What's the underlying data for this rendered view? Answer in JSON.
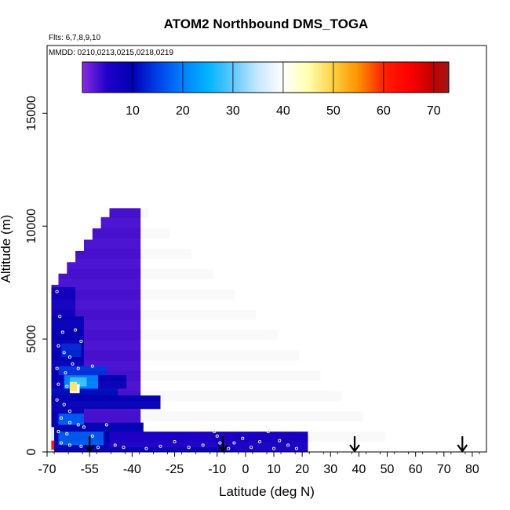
{
  "chart_data": {
    "type": "heatmap",
    "title": "ATOM2 Northbound DMS_TOGA",
    "annotations": [
      "Flts: 6,7,8,9,10",
      "MMDD: 0210,0213,0215,0218,0219"
    ],
    "xlabel": "Latitude (deg N)",
    "ylabel": "Altitude (m)",
    "xlim": [
      -70,
      85
    ],
    "ylim": [
      0,
      18000
    ],
    "xticks": [
      -70,
      -55,
      -40,
      -25,
      -10,
      0,
      10,
      20,
      30,
      40,
      50,
      60,
      70,
      80
    ],
    "xtick_labels": [
      "-70",
      "-55",
      "-40",
      "-25",
      "-10",
      "0",
      "10",
      "20",
      "30",
      "40",
      "50",
      "60",
      "70",
      "80"
    ],
    "yticks": [
      0,
      5000,
      10000,
      15000
    ],
    "ytick_labels": [
      "0",
      "5000",
      "10000",
      "15000"
    ],
    "colorbar": {
      "range": [
        0,
        73
      ],
      "ticks": [
        10,
        20,
        30,
        40,
        50,
        60,
        70
      ],
      "tick_labels": [
        "10",
        "20",
        "30",
        "40",
        "50",
        "60",
        "70"
      ],
      "stops": [
        {
          "v": 0,
          "c": "#8a2be2"
        },
        {
          "v": 5,
          "c": "#1e00c8"
        },
        {
          "v": 10,
          "c": "#0000b4"
        },
        {
          "v": 15,
          "c": "#0040e8"
        },
        {
          "v": 20,
          "c": "#0080ff"
        },
        {
          "v": 25,
          "c": "#00b4ff"
        },
        {
          "v": 30,
          "c": "#60c8ff"
        },
        {
          "v": 35,
          "c": "#c8e8ff"
        },
        {
          "v": 40,
          "c": "#ffffff"
        },
        {
          "v": 45,
          "c": "#ffffb0"
        },
        {
          "v": 50,
          "c": "#ffd040"
        },
        {
          "v": 55,
          "c": "#ff9000"
        },
        {
          "v": 60,
          "c": "#ff2000"
        },
        {
          "v": 65,
          "c": "#ff0000"
        },
        {
          "v": 70,
          "c": "#c00000"
        },
        {
          "v": 73,
          "c": "#a01818"
        }
      ]
    },
    "regions": [
      {
        "lat_start": -68.5,
        "lat_end": -37,
        "alt_start": 0,
        "alt_end": 10800,
        "value": 3
      },
      {
        "lat_start": -68.5,
        "lat_end": -60,
        "alt_start": 0,
        "alt_end": 7300,
        "value": 7
      },
      {
        "lat_start": -68.5,
        "lat_end": -57,
        "alt_start": 0,
        "alt_end": 6000,
        "value": 9
      },
      {
        "lat_start": -68.5,
        "lat_end": -45,
        "alt_start": 2200,
        "alt_end": 2800,
        "value": 11
      },
      {
        "lat_start": -68.5,
        "lat_end": -42,
        "alt_start": 2800,
        "alt_end": 3400,
        "value": 9
      },
      {
        "lat_start": -68.5,
        "lat_end": -30,
        "alt_start": 1900,
        "alt_end": 2500,
        "value": 9
      },
      {
        "lat_start": -68.5,
        "lat_end": -36,
        "alt_start": 0,
        "alt_end": 1300,
        "value": 10
      },
      {
        "lat_start": -68.5,
        "lat_end": 4,
        "alt_start": 0,
        "alt_end": 500,
        "value": 9
      },
      {
        "lat_start": -66,
        "lat_end": -49,
        "alt_start": 3400,
        "alt_end": 3800,
        "value": 14
      },
      {
        "lat_start": -64,
        "lat_end": -52,
        "alt_start": 2800,
        "alt_end": 3400,
        "value": 20
      },
      {
        "lat_start": -62,
        "lat_end": -56,
        "alt_start": 2900,
        "alt_end": 3300,
        "value": 28
      },
      {
        "lat_start": -62,
        "lat_end": -58.5,
        "alt_start": 2600,
        "alt_end": 3000,
        "value": 40
      },
      {
        "lat_start": -62,
        "lat_end": -59.5,
        "alt_start": 2700,
        "alt_end": 3100,
        "value": 48
      },
      {
        "lat_start": -66,
        "lat_end": -57,
        "alt_start": 1200,
        "alt_end": 1700,
        "value": 17
      },
      {
        "lat_start": -66,
        "lat_end": -50,
        "alt_start": 300,
        "alt_end": 900,
        "value": 17
      },
      {
        "lat_start": -68.5,
        "lat_end": -67.5,
        "alt_start": 0,
        "alt_end": 1100,
        "value": 38
      },
      {
        "lat_start": -68.5,
        "lat_end": -67.5,
        "alt_start": 100,
        "alt_end": 500,
        "value": 62
      },
      {
        "lat_start": -65,
        "lat_end": -58,
        "alt_start": 4200,
        "alt_end": 4800,
        "value": 13
      },
      {
        "lat_start": -48,
        "lat_end": 22,
        "alt_start": 200,
        "alt_end": 900,
        "value": 5
      },
      {
        "lat_start": -4,
        "lat_end": 22,
        "alt_start": 0,
        "alt_end": 800,
        "value": 6
      }
    ],
    "arrows": [
      -55,
      -8,
      38.5,
      76.5
    ]
  }
}
